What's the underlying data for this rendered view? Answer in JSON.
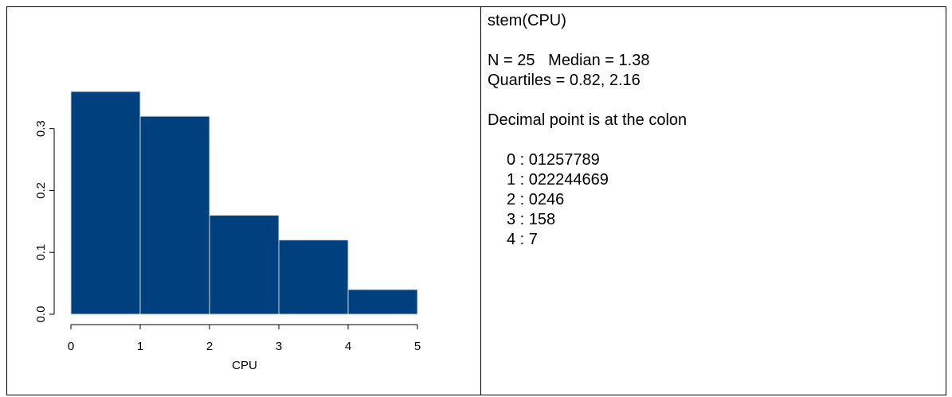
{
  "chart_data": {
    "type": "histogram",
    "xlabel": "CPU",
    "bins": [
      0,
      1,
      2,
      3,
      4,
      5
    ],
    "values": [
      0.36,
      0.32,
      0.16,
      0.12,
      0.04
    ],
    "color": "#00407f",
    "xlim": [
      0,
      5
    ],
    "xticks": [
      0,
      1,
      2,
      3,
      4,
      5
    ],
    "ylim": [
      0,
      0.36
    ],
    "yticks": [
      {
        "value": 0,
        "label": "0.0"
      },
      0.1,
      0.2,
      0.3
    ]
  },
  "stem": {
    "command": "stem(CPU)",
    "summary": "N = 25   Median = 1.38",
    "quartiles": "Quartiles = 0.82, 2.16",
    "note": "Decimal point is at the colon",
    "rows": [
      "0 : 01257789",
      "1 : 022244669",
      "2 : 0246",
      "3 : 158",
      "4 : 7"
    ]
  }
}
